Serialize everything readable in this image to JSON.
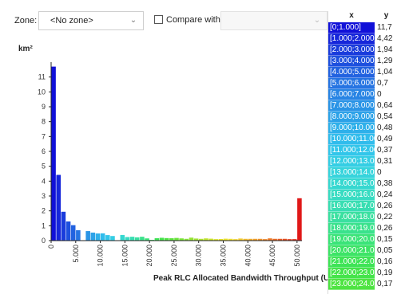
{
  "toolbar": {
    "zone_label": "Zone:",
    "zone_value": "<No zone>",
    "compare_label": "Compare with:",
    "compare_value": ""
  },
  "table": {
    "x_header": "x",
    "y_header": "y",
    "rows": [
      {
        "x": "[0;1.000]",
        "y": "11,7",
        "color": "#1010d8"
      },
      {
        "x": "[1.000;2.000]",
        "y": "4,42",
        "color": "#1626da"
      },
      {
        "x": "[2.000;3.000]",
        "y": "1,94",
        "color": "#1a3cdc"
      },
      {
        "x": "[3.000;4.000]",
        "y": "1,29",
        "color": "#1e50de"
      },
      {
        "x": "[4.000;5.000]",
        "y": "1,04",
        "color": "#2262e0"
      },
      {
        "x": "[5.000;6.000]",
        "y": "0,7",
        "color": "#2674e2"
      },
      {
        "x": "[6.000;7.000]",
        "y": "0",
        "color": "#2884e4"
      },
      {
        "x": "[7.000;8.000]",
        "y": "0,64",
        "color": "#2a94e6"
      },
      {
        "x": "[8.000;9.000]",
        "y": "0,54",
        "color": "#2ca2e8"
      },
      {
        "x": "[9.000;10.000]",
        "y": "0,48",
        "color": "#2eb0ea"
      },
      {
        "x": "[10.000;11.000]",
        "y": "0,49",
        "color": "#30bcec"
      },
      {
        "x": "[11.000;12.000]",
        "y": "0,37",
        "color": "#32c6ea"
      },
      {
        "x": "[12.000;13.000]",
        "y": "0,31",
        "color": "#34cee4"
      },
      {
        "x": "[13.000;14.000]",
        "y": "0",
        "color": "#36d4dc"
      },
      {
        "x": "[14.000;15.000]",
        "y": "0,38",
        "color": "#36d8d0"
      },
      {
        "x": "[15.000;16.000]",
        "y": "0,24",
        "color": "#38dcc2"
      },
      {
        "x": "[16.000;17.000]",
        "y": "0,26",
        "color": "#38deb2"
      },
      {
        "x": "[17.000;18.000]",
        "y": "0,22",
        "color": "#3ae0a0"
      },
      {
        "x": "[18.000;19.000]",
        "y": "0,26",
        "color": "#3ae28c"
      },
      {
        "x": "[19.000;20.000]",
        "y": "0,15",
        "color": "#3ae478"
      },
      {
        "x": "[20.000;21.000]",
        "y": "0,05",
        "color": "#3ce466"
      },
      {
        "x": "[21.000;22.000]",
        "y": "0,16",
        "color": "#3ee456"
      },
      {
        "x": "[22.000;23.000]",
        "y": "0,19",
        "color": "#44e44a"
      },
      {
        "x": "[23.000;24.000]",
        "y": "0,17",
        "color": "#4ee442"
      }
    ]
  },
  "chart_data": {
    "type": "bar",
    "unit_label": "km²",
    "xlabel": "Peak RLC Allocated Bandwidth Throughput (UL) (kbps)",
    "ylabel": "",
    "ylim": [
      0,
      12
    ],
    "xlim": [
      0,
      51000
    ],
    "y_ticks": [
      "0",
      "1",
      "2",
      "3",
      "4",
      "5",
      "6",
      "7",
      "8",
      "9",
      "10",
      "11"
    ],
    "x_ticks": [
      {
        "value": 0,
        "label": "0"
      },
      {
        "value": 5000,
        "label": "5.000"
      },
      {
        "value": 10000,
        "label": "10.000"
      },
      {
        "value": 15000,
        "label": "15.000"
      },
      {
        "value": 20000,
        "label": "20.000"
      },
      {
        "value": 25000,
        "label": "25.000"
      },
      {
        "value": 30000,
        "label": "30.000"
      },
      {
        "value": 35000,
        "label": "35.000"
      },
      {
        "value": 40000,
        "label": "40.000"
      },
      {
        "value": 45000,
        "label": "45.000"
      },
      {
        "value": 50000,
        "label": "50.000"
      }
    ],
    "bin_width": 1000,
    "bins_start": [
      0,
      1000,
      2000,
      3000,
      4000,
      5000,
      6000,
      7000,
      8000,
      9000,
      10000,
      11000,
      12000,
      13000,
      14000,
      15000,
      16000,
      17000,
      18000,
      19000,
      20000,
      21000,
      22000,
      23000,
      24000,
      25000,
      26000,
      27000,
      28000,
      29000,
      30000,
      31000,
      32000,
      33000,
      34000,
      35000,
      36000,
      37000,
      38000,
      39000,
      40000,
      41000,
      42000,
      43000,
      44000,
      45000,
      46000,
      47000,
      48000,
      49000,
      50000
    ],
    "values": [
      11.7,
      4.42,
      1.94,
      1.29,
      1.04,
      0.7,
      0,
      0.64,
      0.54,
      0.48,
      0.49,
      0.37,
      0.31,
      0,
      0.38,
      0.24,
      0.26,
      0.22,
      0.26,
      0.15,
      0.05,
      0.16,
      0.19,
      0.17,
      0.16,
      0.18,
      0.15,
      0.12,
      0.2,
      0.14,
      0.12,
      0.15,
      0.13,
      0.1,
      0.11,
      0.13,
      0.12,
      0.1,
      0.14,
      0.12,
      0.12,
      0.12,
      0.12,
      0.1,
      0.15,
      0.12,
      0.12,
      0.12,
      0.1,
      0.1,
      2.85
    ],
    "colors": [
      "#1010d8",
      "#1626da",
      "#1a3cdc",
      "#1e50de",
      "#2262e0",
      "#2674e2",
      "#2884e4",
      "#2a94e6",
      "#2ca2e8",
      "#2eb0ea",
      "#30bcec",
      "#32c6ea",
      "#34cee4",
      "#36d4dc",
      "#36d8d0",
      "#38dcc2",
      "#38deb2",
      "#3ae0a0",
      "#3ae28c",
      "#3ae478",
      "#3ce466",
      "#3ee456",
      "#44e44a",
      "#4ee442",
      "#5ce43e",
      "#6ae43a",
      "#78e438",
      "#86e436",
      "#94e434",
      "#a2e432",
      "#b0e430",
      "#bee42e",
      "#cce42c",
      "#dae42a",
      "#e6e02a",
      "#ece42c",
      "#f0e030",
      "#f2d632",
      "#f2ca30",
      "#f2bc2e",
      "#f2ae2c",
      "#f2a02a",
      "#f09228",
      "#ee8426",
      "#ec7624",
      "#ea6822",
      "#e85a20",
      "#e64c1e",
      "#e43e1c",
      "#e2301a",
      "#e01818"
    ],
    "grid": false,
    "legend": "none"
  }
}
